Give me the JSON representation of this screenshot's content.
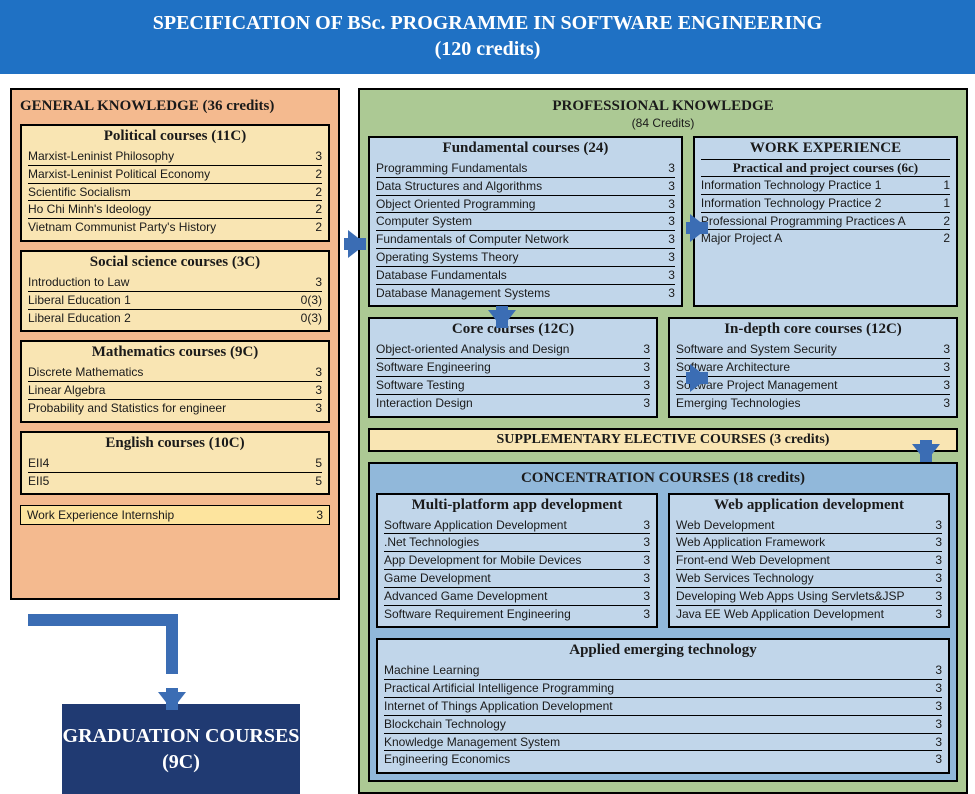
{
  "header": {
    "line1": "SPECIFICATION OF BSc. PROGRAMME IN SOFTWARE ENGINEERING",
    "line2": "(120 credits)"
  },
  "colors": {
    "header_bg": "#1f71c4",
    "general_bg": "#f4ba8f",
    "professional_bg": "#acc994",
    "gen_block_bg": "#f9e5b3",
    "pro_block_bg": "#c1d6ea",
    "conc_bg": "#91b8da",
    "grad_bg": "#203a72",
    "arrow": "#3b6db4"
  },
  "general": {
    "title": "GENERAL KNOWLEDGE (36 credits)",
    "groups": [
      {
        "title": "Political courses (11C)",
        "rows": [
          {
            "name": "Marxist-Leninist Philosophy",
            "c": "3"
          },
          {
            "name": "Marxist-Leninist Political Economy",
            "c": "2"
          },
          {
            "name": "Scientific Socialism",
            "c": "2"
          },
          {
            "name": "Ho Chi Minh's Ideology",
            "c": "2"
          },
          {
            "name": "Vietnam Communist Party's History",
            "c": "2"
          }
        ]
      },
      {
        "title": "Social science courses (3C)",
        "rows": [
          {
            "name": "Introduction to Law",
            "c": "3"
          },
          {
            "name": "Liberal Education 1",
            "c": "0(3)"
          },
          {
            "name": "Liberal Education 2",
            "c": "0(3)"
          }
        ]
      },
      {
        "title": "Mathematics courses (9C)",
        "rows": [
          {
            "name": "Discrete Mathematics",
            "c": "3"
          },
          {
            "name": "Linear Algebra",
            "c": "3"
          },
          {
            "name": "Probability and Statistics for engineer",
            "c": "3"
          }
        ]
      },
      {
        "title": "English courses (10C)",
        "rows": [
          {
            "name": "EII4",
            "c": "5"
          },
          {
            "name": "EII5",
            "c": "5"
          }
        ]
      }
    ],
    "misc": {
      "name": "Work Experience Internship",
      "c": "3"
    }
  },
  "professional": {
    "title": "PROFESSIONAL KNOWLEDGE",
    "subtitle": "(84 Credits)",
    "fundamental": {
      "title": "Fundamental courses (24)",
      "rows": [
        {
          "name": "Programming Fundamentals",
          "c": "3"
        },
        {
          "name": "Data Structures and Algorithms",
          "c": "3"
        },
        {
          "name": "Object Oriented Programming",
          "c": "3"
        },
        {
          "name": "Computer System",
          "c": "3"
        },
        {
          "name": "Fundamentals of Computer Network",
          "c": "3"
        },
        {
          "name": "Operating Systems Theory",
          "c": "3"
        },
        {
          "name": "Database Fundamentals",
          "c": "3"
        },
        {
          "name": "Database Management Systems",
          "c": "3"
        }
      ]
    },
    "workexp": {
      "title": "WORK EXPERIENCE",
      "subtitle": "Practical and project courses (6c)",
      "rows": [
        {
          "name": "Information Technology Practice 1",
          "c": "1"
        },
        {
          "name": "Information Technology Practice 2",
          "c": "1"
        },
        {
          "name": "Professional Programming Practices A",
          "c": "2"
        },
        {
          "name": "Major Project A",
          "c": "2"
        }
      ]
    },
    "core": {
      "title": "Core courses (12C)",
      "rows": [
        {
          "name": "Object-oriented Analysis and Design",
          "c": "3"
        },
        {
          "name": "Software Engineering",
          "c": "3"
        },
        {
          "name": "Software Testing",
          "c": "3"
        },
        {
          "name": "Interaction Design",
          "c": "3"
        }
      ]
    },
    "indepth": {
      "title": "In-depth core courses (12C)",
      "rows": [
        {
          "name": "Software and System Security",
          "c": "3"
        },
        {
          "name": "Software Architecture",
          "c": "3"
        },
        {
          "name": "Software Project Management",
          "c": "3"
        },
        {
          "name": "Emerging Technologies",
          "c": "3"
        }
      ]
    },
    "supplementary": "SUPPLEMENTARY ELECTIVE COURSES (3 credits)",
    "concentration": {
      "title": "CONCENTRATION COURSES (18 credits)",
      "tracks": [
        {
          "title": "Multi-platform app development",
          "rows": [
            {
              "name": "Software Application Development",
              "c": "3"
            },
            {
              "name": ".Net Technologies",
              "c": "3"
            },
            {
              "name": "App Development for Mobile Devices",
              "c": "3"
            },
            {
              "name": "Game Development",
              "c": "3"
            },
            {
              "name": "Advanced Game Development",
              "c": "3"
            },
            {
              "name": "Software Requirement Engineering",
              "c": "3"
            }
          ]
        },
        {
          "title": "Web application development",
          "rows": [
            {
              "name": "Web Development",
              "c": "3"
            },
            {
              "name": "Web Application Framework",
              "c": "3"
            },
            {
              "name": "Front-end Web Development",
              "c": "3"
            },
            {
              "name": "Web Services Technology",
              "c": "3"
            },
            {
              "name": "Developing Web Apps Using Servlets&JSP",
              "c": "3"
            },
            {
              "name": "Java EE Web Application Development",
              "c": "3"
            }
          ]
        },
        {
          "title": "Applied emerging technology",
          "rows": [
            {
              "name": "Machine Learning",
              "c": "3"
            },
            {
              "name": "Practical Artificial Intelligence Programming",
              "c": "3"
            },
            {
              "name": "Internet of Things Application Development",
              "c": "3"
            },
            {
              "name": "Blockchain Technology",
              "c": "3"
            },
            {
              "name": "Knowledge Management System",
              "c": "3"
            },
            {
              "name": "Engineering Economics",
              "c": "3"
            }
          ]
        }
      ]
    }
  },
  "graduation": "GRADUATION COURSES (9C)"
}
